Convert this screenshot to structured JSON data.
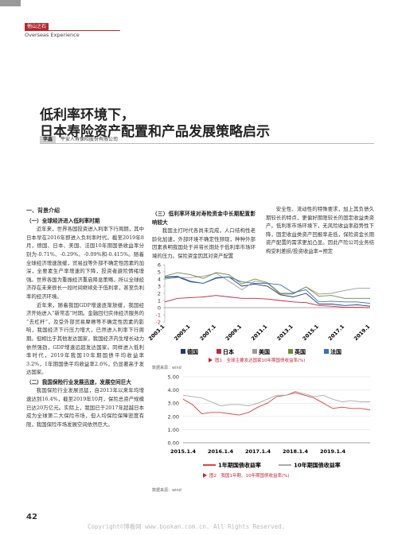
{
  "header": {
    "section": "他山之石",
    "subtitle": "Overseas Experience"
  },
  "title": [
    "低利率环境下，",
    "日本寿险资产配置和产品发展策略启示"
  ],
  "author": {
    "name": "李鑫",
    "affiliation": "平安人寿保险股份有限公司"
  },
  "columns": [
    [
      {
        "heading": "一、背景介绍"
      },
      {
        "subheading": "（一）全球经济进入低利率时期"
      },
      {
        "text": "近年来，世界各国投资进入利率下行周期，其中日本早在2016年即进入负利率时代。截至2019年8月，德国、日本、美国、法国10年期国债收益率分别为-0.71%、-0.29%、-0.09%和-0.415%。随着全球经济增速放缓，贸易战等外部不确定性因素的加深，全要素生产率增速的下降，投资者避险情绪增强。世界各国为重振经济重启降息策略，所以全球经济存在未来很长一段时间继续处于低利率，甚至负利率的经济环境。"
      },
      {
        "text": "近年来，随着我国GDP增速逐渐放缓，我国经济开始进入“新常态”时期。金融回归实体经济服务的“去杠杆”，及受外部贸易摩擦等不确定性因素的影响，我国经济下行压力增大，已然进入利率下行周期。但相比于其他发达国家，我国经济内生增长动力依然强劲，GDP增速远超发达国家。同样进入低利率时代，2019年我国10年期国债平均收益率3.2%，1年期国债平均收益率2.6%，仍显著高于发达国家。"
      },
      {
        "subheading": "（二）我国保险行业发展迅速，发展空间巨大"
      },
      {
        "text": "我国保险行业发展迅猛，自2013年以来年均增速达到16.4%，截至2019年10月，保险总资产规模已达20万亿元。实际上，我国已于2017年超越日本成为全球第二大保险市场，但人均保险保障密度有限，我国保险市场发展空间依然巨大。"
      }
    ],
    [
      {
        "subheading": "（三）低利率环境对寿险资金中长期配置影响较大"
      },
      {
        "text": "我国主打时代各尚未完成，人口结构性老龄化加速，外部环境不确定性频现，种种外部因素表明我国处于并将长期处于低利率市场环境的压力。保险资金因其对资产配置"
      }
    ],
    [
      {
        "text": "安全性、流动性的特殊要求，加上其负债久期较长的特点，更偏好期限较长的固定收益类资产。低利率市场环境下，无风险收益率趋势性下降，固定收益类资产回报率走低，保险资金长期资产配置的需求更加凸显。因此产险公司业务结构受利差损/投资收益率=预定"
      }
    ]
  ],
  "chart_data": [
    {
      "type": "line",
      "caption": "图1　全球主要发达国家10年期国债收益率(%)",
      "source": "数据来源：wind",
      "categories": [
        "2003.1",
        null,
        "2005.1",
        null,
        "2007.1",
        null,
        "2009.1",
        null,
        "2011.1",
        null,
        "2013.1",
        null,
        "2015.1",
        null,
        "2017.1",
        null,
        "2019.1"
      ],
      "series": [
        {
          "name": "德国",
          "color": "#1f3a6e",
          "values": [
            4.2,
            4.3,
            3.6,
            3.4,
            4.1,
            4.3,
            3.0,
            3.3,
            3.0,
            1.8,
            1.5,
            2.0,
            0.5,
            0.5,
            0.3,
            0.4,
            0.2
          ]
        },
        {
          "name": "日本",
          "color": "#c0283a",
          "values": [
            0.8,
            1.3,
            1.4,
            1.5,
            1.7,
            1.5,
            1.3,
            1.3,
            1.2,
            1.0,
            0.8,
            0.7,
            0.3,
            0.2,
            0.05,
            0.05,
            0.0
          ]
        },
        {
          "name": "美国",
          "color": "#999999",
          "values": [
            4.0,
            4.2,
            4.2,
            4.4,
            4.8,
            3.7,
            2.5,
            3.7,
            3.4,
            1.9,
            1.9,
            2.9,
            1.9,
            2.0,
            2.4,
            2.7,
            2.7
          ]
        },
        {
          "name": "英国",
          "color": "#6e8b3d",
          "values": [
            4.4,
            4.9,
            4.6,
            4.1,
            4.9,
            4.6,
            3.3,
            4.0,
            3.5,
            2.0,
            2.0,
            2.9,
            1.6,
            1.7,
            1.3,
            1.3,
            1.3
          ]
        },
        {
          "name": "法国",
          "color": "#3b6fb6",
          "values": [
            4.3,
            4.4,
            3.7,
            3.4,
            4.2,
            4.3,
            3.6,
            3.4,
            3.4,
            3.2,
            2.1,
            2.5,
            0.8,
            0.9,
            0.8,
            0.8,
            0.6
          ]
        }
      ],
      "ylim": [
        -2,
        6
      ],
      "yticks": [
        6,
        5,
        4,
        3,
        2,
        1,
        0,
        -1,
        -2
      ],
      "grid": false
    },
    {
      "type": "line",
      "caption": "图2　我国1年期、10年期国债收益率(%)",
      "source": "数据来源：wind",
      "categories": [
        "2015.1.4",
        null,
        null,
        null,
        "2016.1.4",
        null,
        null,
        null,
        "2017.1.4",
        null,
        null,
        null,
        "2018.1.4",
        null,
        null,
        null,
        "2019.1.4",
        null,
        null,
        null,
        null
      ],
      "series": [
        {
          "name": "1年期国债收益率",
          "color": "#e0403a",
          "values": [
            3.3,
            2.9,
            2.2,
            2.3,
            2.3,
            2.2,
            2.1,
            2.3,
            2.7,
            3.0,
            3.5,
            3.6,
            3.8,
            3.6,
            3.4,
            3.0,
            2.6,
            2.7,
            2.6,
            2.6,
            2.5
          ]
        },
        {
          "name": "10年期国债收益率",
          "color": "#aaaaaa",
          "values": [
            3.6,
            3.5,
            3.4,
            3.1,
            2.8,
            2.9,
            2.9,
            2.8,
            3.0,
            3.3,
            3.6,
            3.6,
            3.9,
            3.7,
            3.5,
            3.6,
            3.3,
            3.1,
            3.2,
            3.1,
            3.1
          ]
        }
      ],
      "ylim": [
        0,
        5
      ],
      "yticks": [
        {
          "value": 5,
          "label": "5.00"
        },
        {
          "value": 4,
          "label": "4.00"
        },
        {
          "value": 3,
          "label": "3.00"
        },
        {
          "value": 2,
          "label": "2.00"
        },
        {
          "value": 1,
          "label": "1.00"
        },
        {
          "value": 0,
          "label": "0.00"
        }
      ],
      "grid": true
    }
  ],
  "footer": {
    "page": "42",
    "copyright": "Copyright©博看网 www.bookan.com.cn. All Rights Reserved."
  }
}
